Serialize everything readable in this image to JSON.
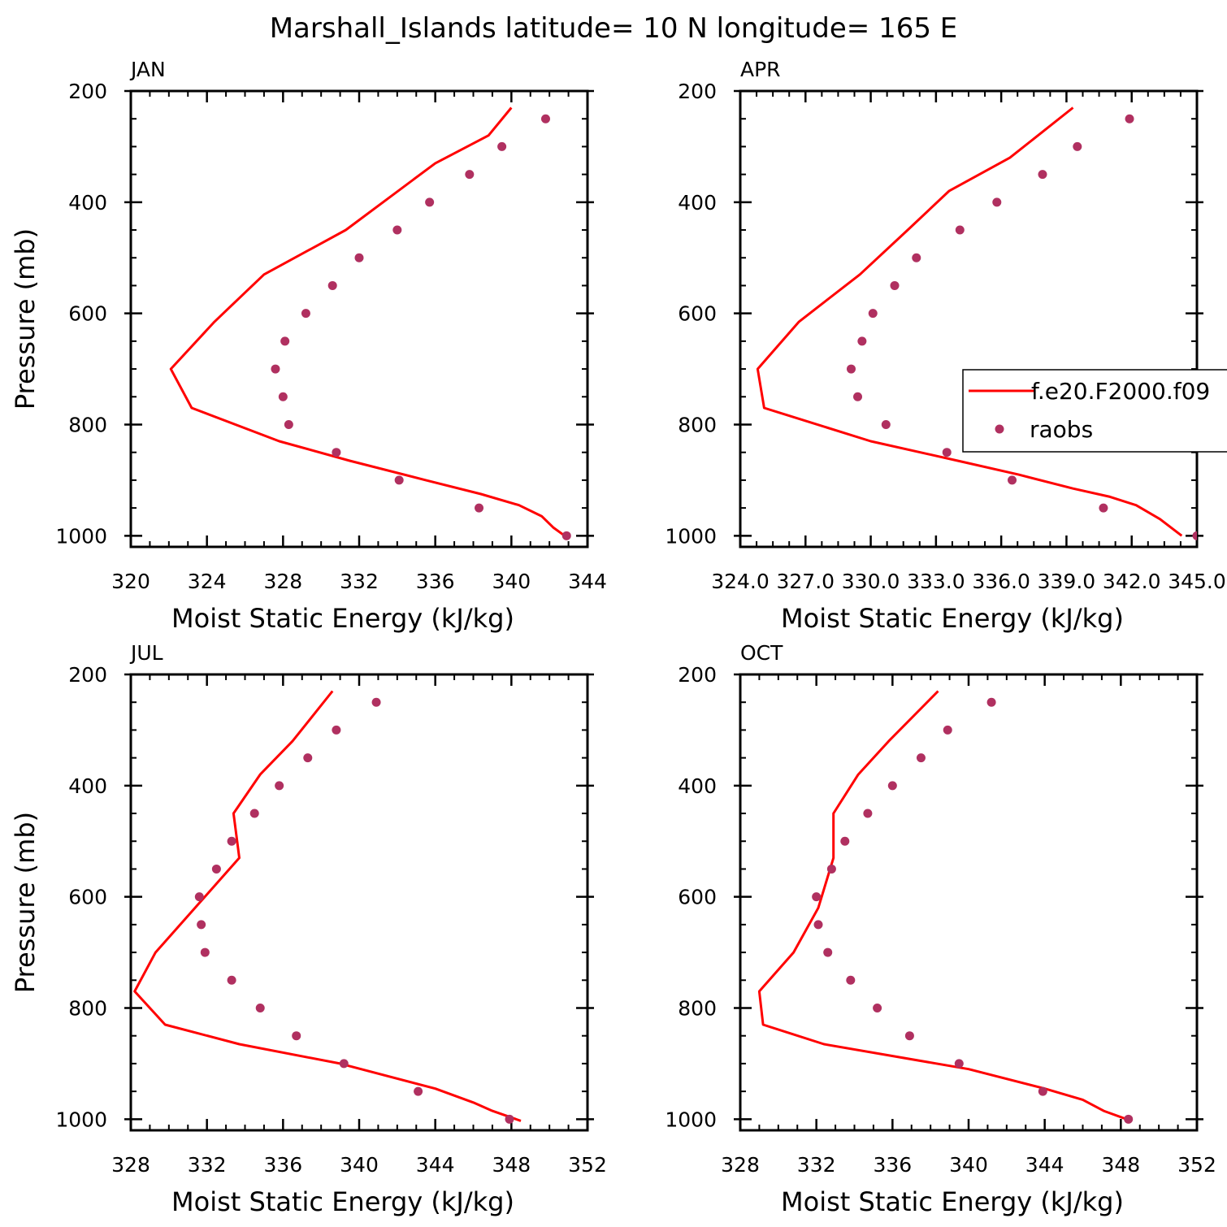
{
  "title": "Marshall_Islands  latitude= 10 N longitude= 165 E",
  "colors": {
    "model": "#ff0000",
    "obs": "#b03060",
    "axis": "#000000"
  },
  "legend": {
    "entries": [
      "f.e20.F2000.f09",
      "raobs"
    ],
    "placement": "right, over APR panel"
  },
  "chart_data": [
    {
      "type": "line",
      "title": "JAN",
      "xlabel": "Moist Static Energy (kJ/kg)",
      "ylabel": "Pressure (mb)",
      "xlim": [
        320,
        344
      ],
      "ylim": [
        1000,
        200
      ],
      "xticks": [
        "320",
        "324",
        "328",
        "332",
        "336",
        "340",
        "344"
      ],
      "yticks": [
        "200",
        "400",
        "600",
        "800",
        "1000"
      ],
      "series": [
        {
          "name": "f.e20.F2000.f09",
          "style": "line",
          "x": [
            340.0,
            338.8,
            336.0,
            331.3,
            327.0,
            324.4,
            322.1,
            323.2,
            327.8,
            331.5,
            335.5,
            338.4,
            340.4,
            341.6,
            342.2,
            342.8
          ],
          "y": [
            230,
            280,
            330,
            450,
            530,
            615,
            700,
            770,
            830,
            865,
            900,
            925,
            945,
            965,
            985,
            1000
          ]
        },
        {
          "name": "raobs",
          "style": "marker",
          "x": [
            341.8,
            339.5,
            337.8,
            335.7,
            334.0,
            332.0,
            330.6,
            329.2,
            328.1,
            327.6,
            328.0,
            328.3,
            330.8,
            334.1,
            338.3,
            342.9
          ],
          "y": [
            250,
            300,
            350,
            400,
            450,
            500,
            550,
            600,
            650,
            700,
            750,
            800,
            850,
            900,
            950,
            1000
          ]
        }
      ]
    },
    {
      "type": "line",
      "title": "APR",
      "xlabel": "Moist Static Energy (kJ/kg)",
      "ylabel": "",
      "xlim": [
        324.0,
        345.0
      ],
      "ylim": [
        1000,
        200
      ],
      "xticks": [
        "324.0",
        "327.0",
        "330.0",
        "333.0",
        "336.0",
        "339.0",
        "342.0",
        "345.0"
      ],
      "yticks": [
        "200",
        "400",
        "600",
        "800",
        "1000"
      ],
      "series": [
        {
          "name": "f.e20.F2000.f09",
          "style": "line",
          "x": [
            339.3,
            336.4,
            333.6,
            331.7,
            329.5,
            326.7,
            324.8,
            325.1,
            330.0,
            334.0,
            336.8,
            339.3,
            341.0,
            342.2,
            343.3,
            344.3
          ],
          "y": [
            230,
            320,
            380,
            450,
            530,
            615,
            700,
            770,
            830,
            865,
            890,
            915,
            930,
            945,
            970,
            1000
          ]
        },
        {
          "name": "raobs",
          "style": "marker",
          "x": [
            341.9,
            339.5,
            337.9,
            335.8,
            334.1,
            332.1,
            331.1,
            330.1,
            329.6,
            329.1,
            329.4,
            330.7,
            333.5,
            336.5,
            340.7,
            345.0
          ],
          "y": [
            250,
            300,
            350,
            400,
            450,
            500,
            550,
            600,
            650,
            700,
            750,
            800,
            850,
            900,
            950,
            1000
          ]
        }
      ]
    },
    {
      "type": "line",
      "title": "JUL",
      "xlabel": "Moist Static Energy (kJ/kg)",
      "ylabel": "Pressure (mb)",
      "xlim": [
        328,
        352
      ],
      "ylim": [
        1000,
        200
      ],
      "xticks": [
        "328",
        "332",
        "336",
        "340",
        "344",
        "348",
        "352"
      ],
      "yticks": [
        "200",
        "400",
        "600",
        "800",
        "1000"
      ],
      "series": [
        {
          "name": "f.e20.F2000.f09",
          "style": "line",
          "x": [
            338.6,
            336.5,
            334.8,
            333.4,
            333.7,
            331.5,
            329.3,
            328.2,
            329.8,
            333.7,
            339.0,
            344.0,
            346.0,
            347.0,
            348.5
          ],
          "y": [
            230,
            320,
            380,
            450,
            530,
            615,
            700,
            770,
            830,
            865,
            900,
            945,
            970,
            985,
            1003
          ]
        },
        {
          "name": "raobs",
          "style": "marker",
          "x": [
            340.9,
            338.8,
            337.3,
            335.8,
            334.5,
            333.3,
            332.5,
            331.6,
            331.7,
            331.9,
            333.3,
            334.8,
            336.7,
            339.2,
            343.1,
            347.9
          ],
          "y": [
            250,
            300,
            350,
            400,
            450,
            500,
            550,
            600,
            650,
            700,
            750,
            800,
            850,
            900,
            950,
            1000
          ]
        }
      ]
    },
    {
      "type": "line",
      "title": "OCT",
      "xlabel": "Moist Static Energy (kJ/kg)",
      "ylabel": "",
      "xlim": [
        328,
        352
      ],
      "ylim": [
        1000,
        200
      ],
      "xticks": [
        "328",
        "332",
        "336",
        "340",
        "344",
        "348",
        "352"
      ],
      "yticks": [
        "200",
        "400",
        "600",
        "800",
        "1000"
      ],
      "series": [
        {
          "name": "f.e20.F2000.f09",
          "style": "line",
          "x": [
            338.4,
            335.8,
            334.2,
            332.9,
            332.9,
            332.1,
            330.8,
            329.0,
            329.2,
            332.4,
            340.0,
            344.0,
            346.0,
            347.1,
            348.3
          ],
          "y": [
            230,
            320,
            380,
            450,
            530,
            620,
            700,
            770,
            830,
            865,
            910,
            945,
            965,
            985,
            1000
          ]
        },
        {
          "name": "raobs",
          "style": "marker",
          "x": [
            341.2,
            338.9,
            337.5,
            336.0,
            334.7,
            333.5,
            332.8,
            332.0,
            332.1,
            332.6,
            333.8,
            335.2,
            336.9,
            339.5,
            343.9,
            348.4
          ],
          "y": [
            250,
            300,
            350,
            400,
            450,
            500,
            550,
            600,
            650,
            700,
            750,
            800,
            850,
            900,
            950,
            1000
          ]
        }
      ]
    }
  ]
}
